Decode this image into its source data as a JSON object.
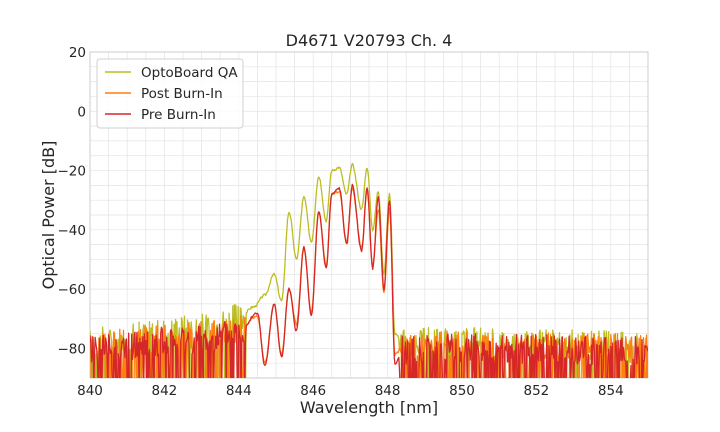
{
  "chart_data": {
    "type": "line",
    "title": "D4671 V20793 Ch. 4",
    "xlabel": "Wavelength [nm]",
    "ylabel": "Optical Power [dB]",
    "xlim": [
      840,
      855
    ],
    "ylim": [
      -90,
      20
    ],
    "xticks": [
      840,
      842,
      844,
      846,
      848,
      850,
      852,
      854
    ],
    "yticks": [
      20,
      0,
      -20,
      -40,
      -60,
      -80
    ],
    "grid": true,
    "legend": "top-left",
    "series": [
      {
        "name": "OptoBoard QA",
        "color": "#bcbd22",
        "x": [
          840,
          843,
          844,
          844.4,
          844.7,
          844.95,
          845.15,
          845.35,
          845.55,
          845.75,
          845.95,
          846.15,
          846.35,
          846.5,
          846.7,
          846.9,
          847.05,
          847.3,
          847.45,
          847.6,
          847.75,
          847.9,
          848.05,
          848.2,
          848.4,
          850,
          855
        ],
        "y": [
          -78,
          -73,
          -70,
          -66,
          -62,
          -55,
          -64,
          -34,
          -50,
          -29,
          -44,
          -22,
          -37,
          -20,
          -19,
          -28,
          -18,
          -33,
          -19,
          -40,
          -27,
          -55,
          -28,
          -75,
          -78,
          -78,
          -79
        ]
      },
      {
        "name": "Post Burn-In",
        "color": "#ff7f0e",
        "x": [
          840,
          843,
          844,
          844.5,
          844.7,
          844.95,
          845.15,
          845.35,
          845.55,
          845.75,
          845.95,
          846.15,
          846.35,
          846.5,
          846.7,
          846.9,
          847.05,
          847.3,
          847.45,
          847.6,
          847.75,
          847.9,
          848.05,
          848.2,
          848.4,
          850,
          855
        ],
        "y": [
          -79,
          -76,
          -74,
          -69,
          -85,
          -65,
          -82,
          -60,
          -72,
          -46,
          -68,
          -34,
          -52,
          -28,
          -27,
          -44,
          -26,
          -46,
          -27,
          -52,
          -33,
          -61,
          -33,
          -82,
          -80,
          -79,
          -80
        ]
      },
      {
        "name": "Pre Burn-In",
        "color": "#d62728",
        "x": [
          840,
          843,
          844,
          844.5,
          844.7,
          844.95,
          845.15,
          845.35,
          845.55,
          845.75,
          845.95,
          846.15,
          846.35,
          846.5,
          846.7,
          846.9,
          847.05,
          847.3,
          847.45,
          847.6,
          847.75,
          847.9,
          848.05,
          848.2,
          848.4,
          850,
          855
        ],
        "y": [
          -80,
          -77,
          -75,
          -68,
          -86,
          -65,
          -83,
          -60,
          -74,
          -46,
          -69,
          -34,
          -53,
          -28,
          -26,
          -45,
          -25,
          -47,
          -26,
          -53,
          -29,
          -60,
          -30,
          -85,
          -81,
          -80,
          -81
        ]
      }
    ]
  }
}
